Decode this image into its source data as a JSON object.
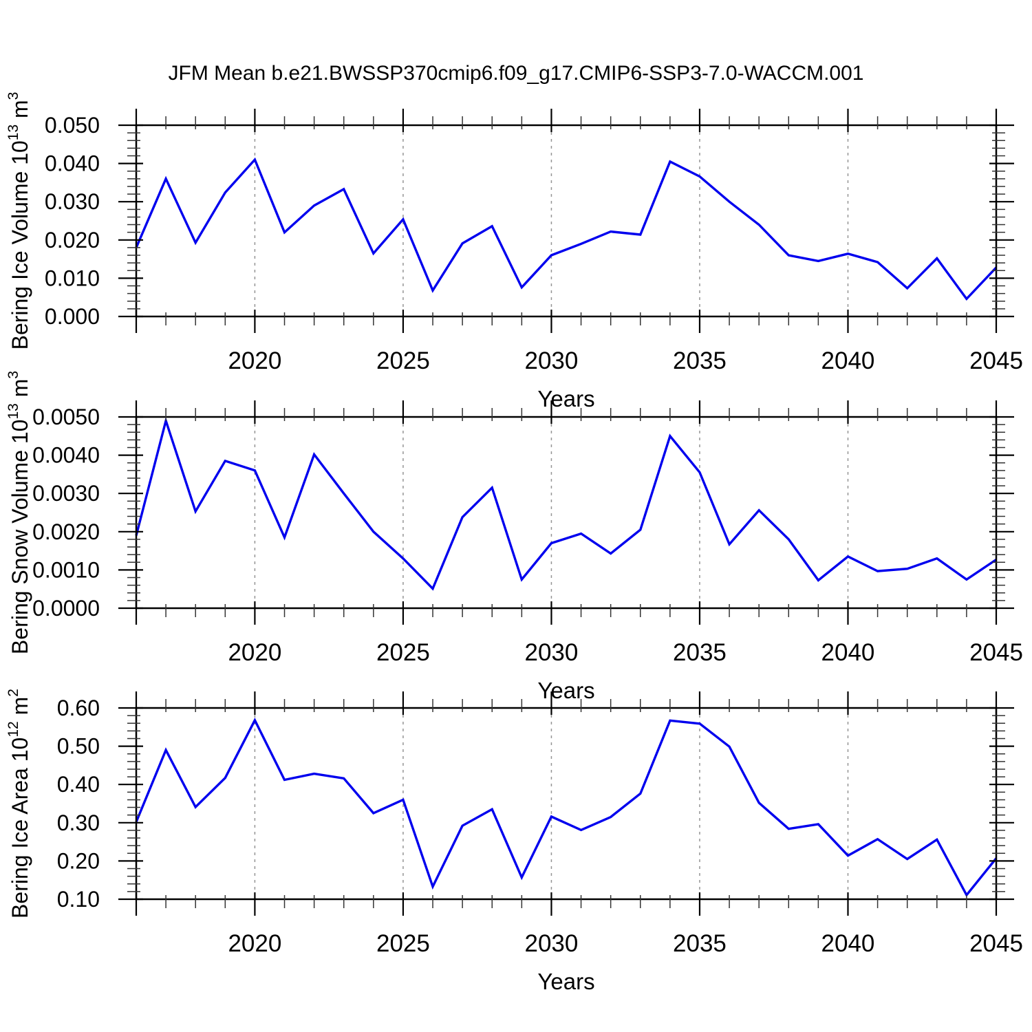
{
  "title": "JFM Mean b.e21.BWSSP370cmip6.f09_g17.CMIP6-SSP3-7.0-WACCM.001",
  "chart_data": {
    "type": "line",
    "title": "JFM Mean b.e21.BWSSP370cmip6.f09_g17.CMIP6-SSP3-7.0-WACCM.001",
    "xlabel": "Years",
    "xlim": [
      2016,
      2045
    ],
    "years": [
      2016,
      2017,
      2018,
      2019,
      2020,
      2021,
      2022,
      2023,
      2024,
      2025,
      2026,
      2027,
      2028,
      2029,
      2030,
      2031,
      2032,
      2033,
      2034,
      2035,
      2036,
      2037,
      2038,
      2039,
      2040,
      2041,
      2042,
      2043,
      2044,
      2045
    ],
    "x_major_ticks": [
      2020,
      2025,
      2030,
      2035,
      2040,
      2045
    ],
    "gridline_years": [
      2020,
      2025,
      2030,
      2035,
      2040
    ],
    "legend": "none",
    "grid": "vertical-dashed",
    "colors": {
      "line": "#0000ee",
      "grid": "#949494",
      "axis": "#000000",
      "minor_tick": "#333333"
    },
    "panels": [
      {
        "id": "bering-ice-volume",
        "ylabel": "Bering Ice Volume 10^13 m^3",
        "ylabel_parts": [
          {
            "text": "Bering Ice Volume 10",
            "sup": false
          },
          {
            "text": "13",
            "sup": true
          },
          {
            "text": " m",
            "sup": false
          },
          {
            "text": "3",
            "sup": true
          }
        ],
        "ylim": [
          0.0,
          0.05
        ],
        "y_major": 0.01,
        "y_minor": 0.002,
        "y_decimals": 3,
        "values": [
          0.018,
          0.036,
          0.0193,
          0.0324,
          0.041,
          0.022,
          0.029,
          0.0333,
          0.0165,
          0.0254,
          0.0068,
          0.0191,
          0.0236,
          0.0076,
          0.016,
          0.019,
          0.0222,
          0.0214,
          0.0405,
          0.0366,
          0.03,
          0.024,
          0.016,
          0.0145,
          0.0164,
          0.0142,
          0.0074,
          0.0152,
          0.0046,
          0.0128
        ]
      },
      {
        "id": "bering-snow-volume",
        "ylabel": "Bering Snow Volume 10^13 m^3",
        "ylabel_parts": [
          {
            "text": "Bering Snow Volume 10",
            "sup": false
          },
          {
            "text": "13",
            "sup": true
          },
          {
            "text": " m",
            "sup": false
          },
          {
            "text": "3",
            "sup": true
          }
        ],
        "ylim": [
          0.0,
          0.005
        ],
        "y_major": 0.001,
        "y_minor": 0.0002,
        "y_decimals": 4,
        "values": [
          0.0019,
          0.0049,
          0.00253,
          0.00385,
          0.0036,
          0.00185,
          0.00402,
          0.003,
          0.002,
          0.0013,
          0.00051,
          0.00238,
          0.00315,
          0.00075,
          0.0017,
          0.00195,
          0.00143,
          0.00205,
          0.0045,
          0.00355,
          0.00167,
          0.00256,
          0.0018,
          0.00073,
          0.00135,
          0.00097,
          0.00103,
          0.0013,
          0.00075,
          0.00127
        ]
      },
      {
        "id": "bering-ice-area",
        "ylabel": "Bering Ice Area 10^12 m^2",
        "ylabel_parts": [
          {
            "text": "Bering Ice Area 10",
            "sup": false
          },
          {
            "text": "12",
            "sup": true
          },
          {
            "text": " m",
            "sup": false
          },
          {
            "text": "2",
            "sup": true
          }
        ],
        "ylim": [
          0.1,
          0.6
        ],
        "y_major": 0.1,
        "y_minor": 0.02,
        "y_decimals": 2,
        "values": [
          0.302,
          0.49,
          0.341,
          0.417,
          0.568,
          0.412,
          0.428,
          0.416,
          0.325,
          0.36,
          0.133,
          0.292,
          0.335,
          0.157,
          0.316,
          0.281,
          0.315,
          0.376,
          0.567,
          0.559,
          0.499,
          0.352,
          0.284,
          0.296,
          0.214,
          0.257,
          0.205,
          0.256,
          0.111,
          0.207
        ]
      }
    ]
  }
}
